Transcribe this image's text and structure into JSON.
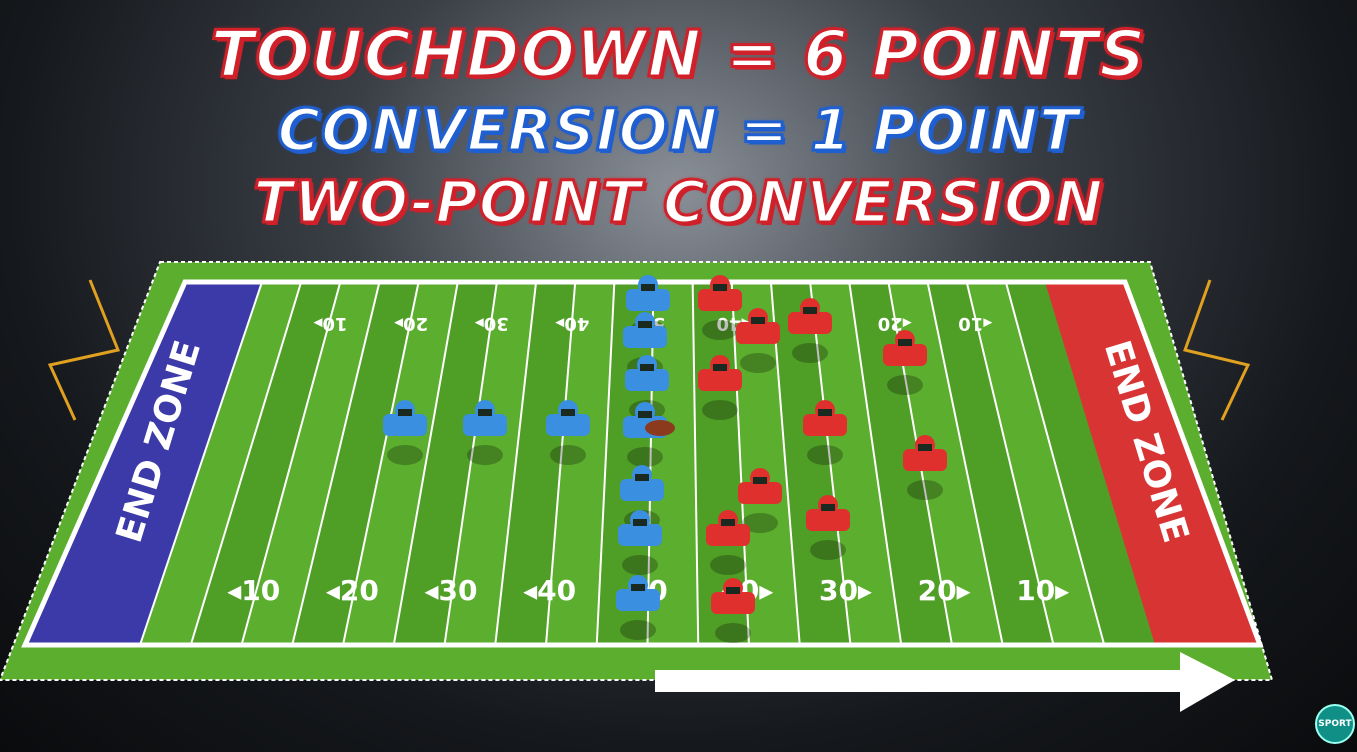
{
  "headline": {
    "line1": "TOUCHDOWN = 6 POINTS",
    "line2": "CONVERSION = 1 POINT",
    "line3": "TWO-POINT CONVERSION"
  },
  "field": {
    "left_end_zone": "END ZONE",
    "right_end_zone": "END ZONE",
    "bottom_numbers": [
      "◂10",
      "◂20",
      "◂30",
      "◂40",
      "50",
      "40▸",
      "30▸",
      "20▸",
      "10▸"
    ],
    "top_numbers": [
      "10▸",
      "20▸",
      "30▸",
      "40▸",
      "50",
      "◂40",
      "◂30",
      "◂20",
      "◂10"
    ],
    "colors": {
      "grass": "#5cae2e",
      "grass_dark": "#4f9e26",
      "left_end_zone": "#3b3aa8",
      "right_end_zone": "#d83434",
      "blue_team": "#3a8fe0",
      "red_team": "#e0302e"
    }
  },
  "logo": {
    "text": "SPORT"
  }
}
